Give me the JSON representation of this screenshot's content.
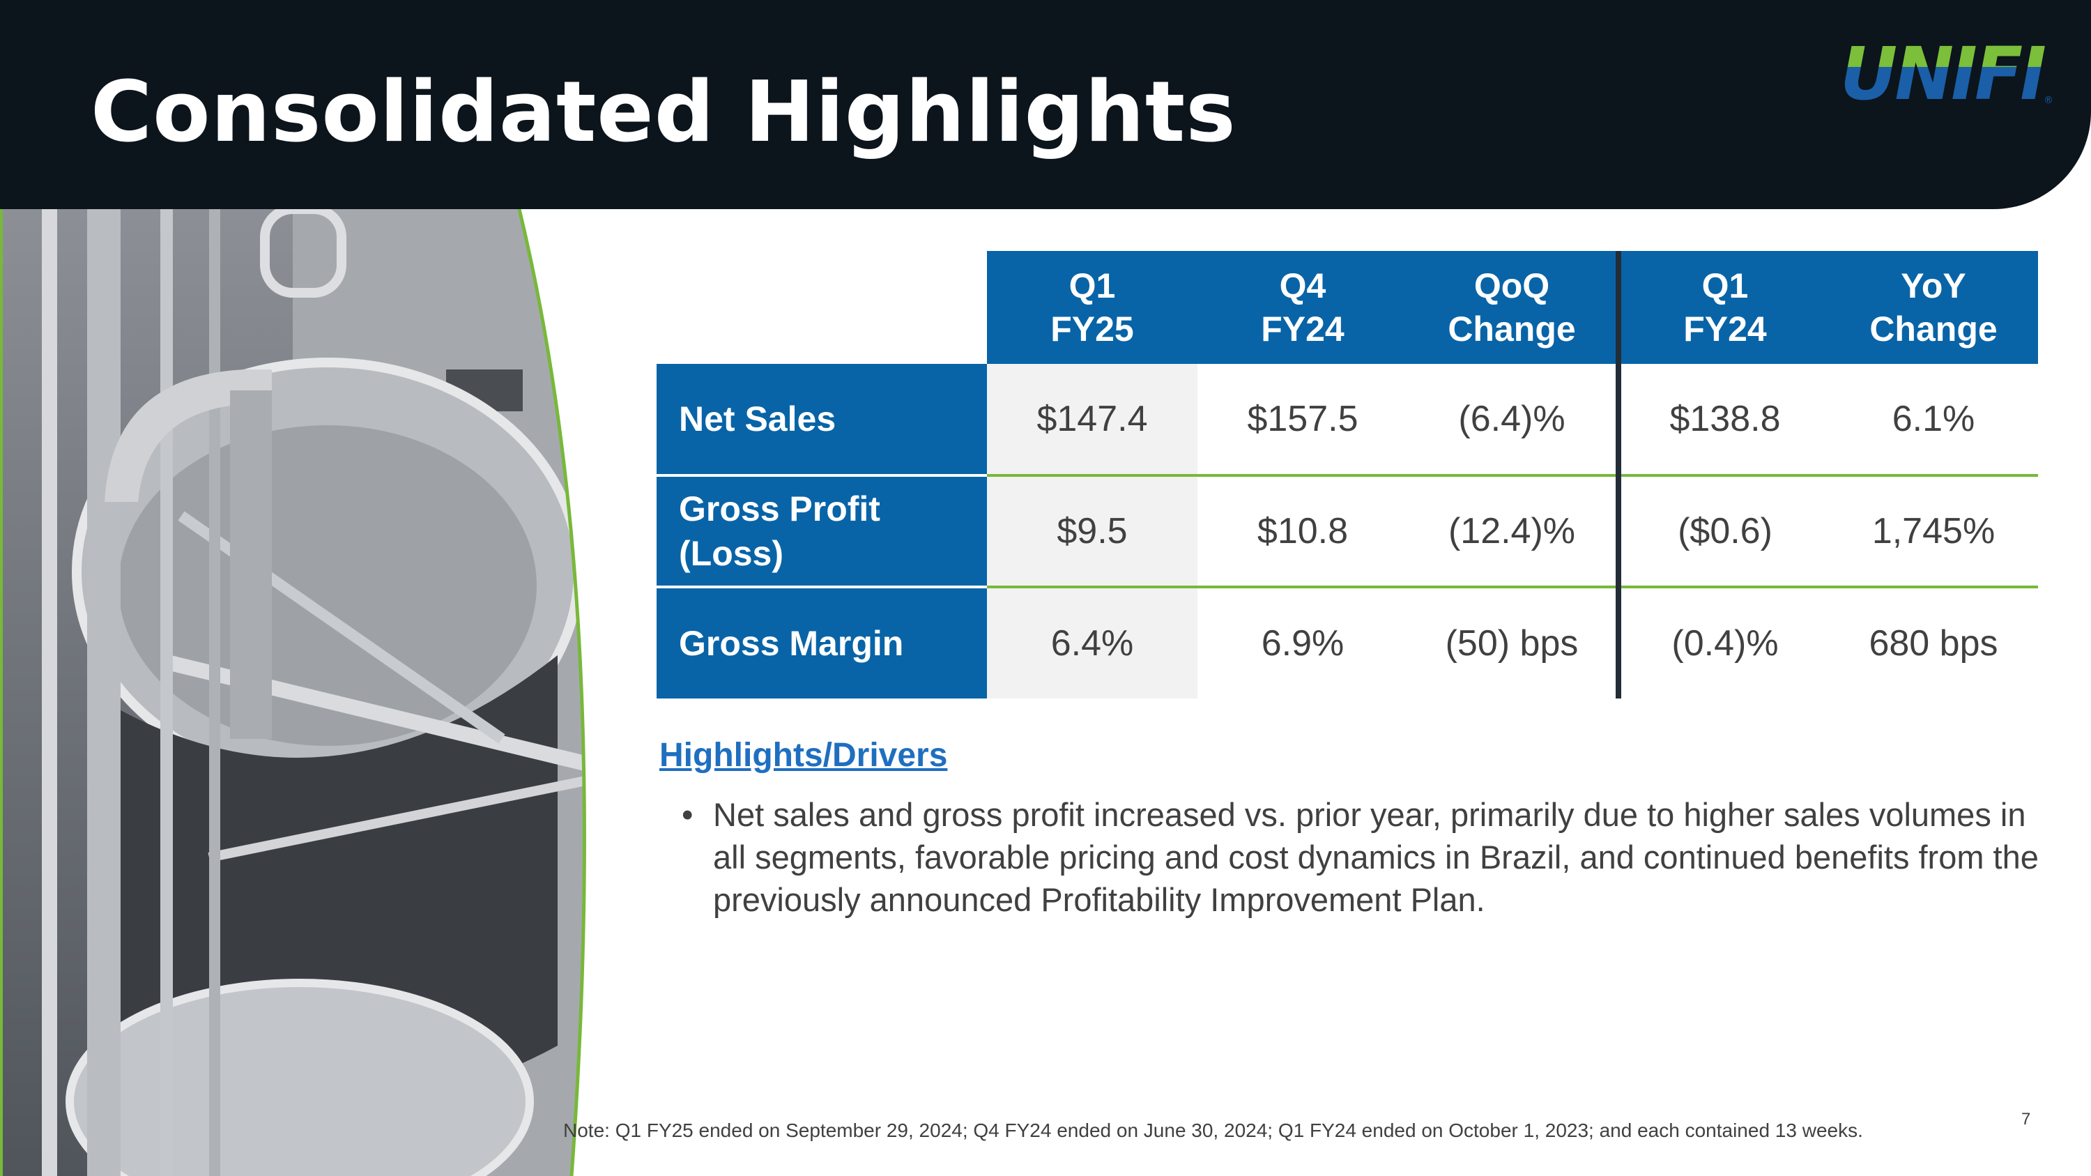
{
  "header": {
    "title": "Consolidated Highlights",
    "logo_text": "UNIFI",
    "logo_mark": "®"
  },
  "colors": {
    "header_bg": "#0c141c",
    "table_blue": "#0864a7",
    "accent_green": "#78b83a",
    "logo_blue": "#1a5fa8",
    "link_blue": "#1f6fc0"
  },
  "photo": {
    "icon": "industrial-silo-photo"
  },
  "table": {
    "columns": [
      "Q1\nFY25",
      "Q4\nFY24",
      "QoQ\nChange",
      "Q1\nFY24",
      "YoY\nChange"
    ],
    "rows": [
      {
        "label": "Net Sales",
        "cells": [
          "$147.4",
          "$157.5",
          "(6.4)%",
          "$138.8",
          "6.1%"
        ]
      },
      {
        "label": "Gross Profit (Loss)",
        "cells": [
          "$9.5",
          "$10.8",
          "(12.4)%",
          "($0.6)",
          "1,745%"
        ]
      },
      {
        "label": "Gross Margin",
        "cells": [
          "6.4%",
          "6.9%",
          "(50) bps",
          "(0.4)%",
          "680 bps"
        ]
      }
    ]
  },
  "highlights": {
    "heading": "Highlights/Drivers",
    "bullets": [
      "Net sales and gross profit increased vs. prior year, primarily due to higher sales volumes in all segments, favorable pricing and cost dynamics in Brazil, and continued benefits from the previously announced Profitability Improvement Plan."
    ]
  },
  "note": "Note: Q1 FY25 ended on September 29, 2024; Q4 FY24 ended on June 30, 2024; Q1 FY24 ended on October 1, 2023; and each contained 13 weeks.",
  "page_number": "7"
}
